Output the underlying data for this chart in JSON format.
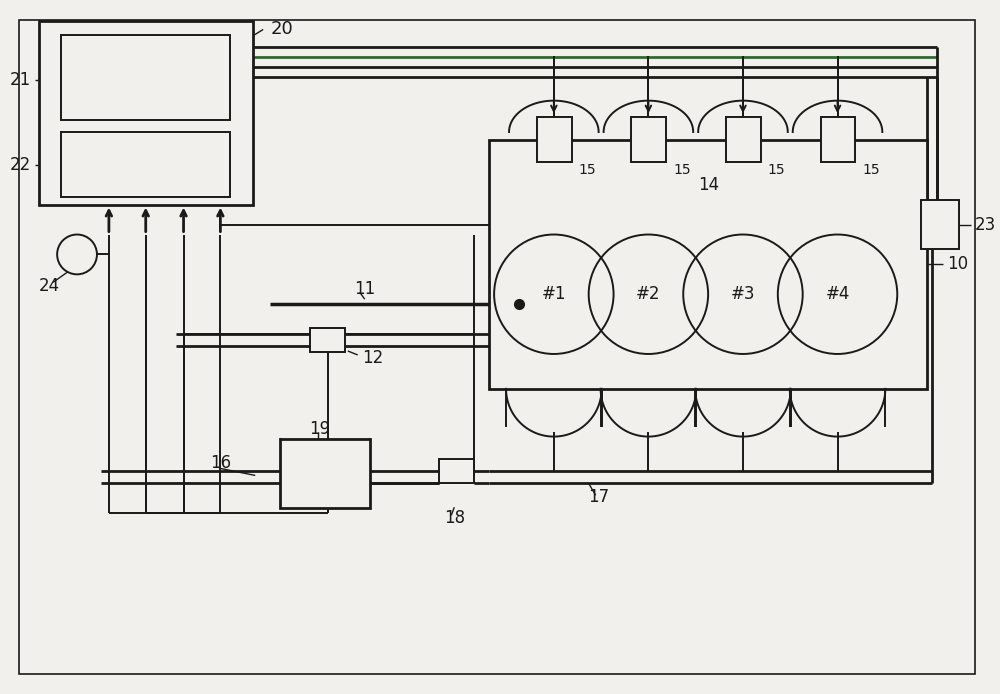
{
  "bg_color": "#f2f0ec",
  "line_color": "#1a1a1a",
  "lw_thick": 2.0,
  "lw_thin": 1.4,
  "green_line_color": "#2a6e2a"
}
